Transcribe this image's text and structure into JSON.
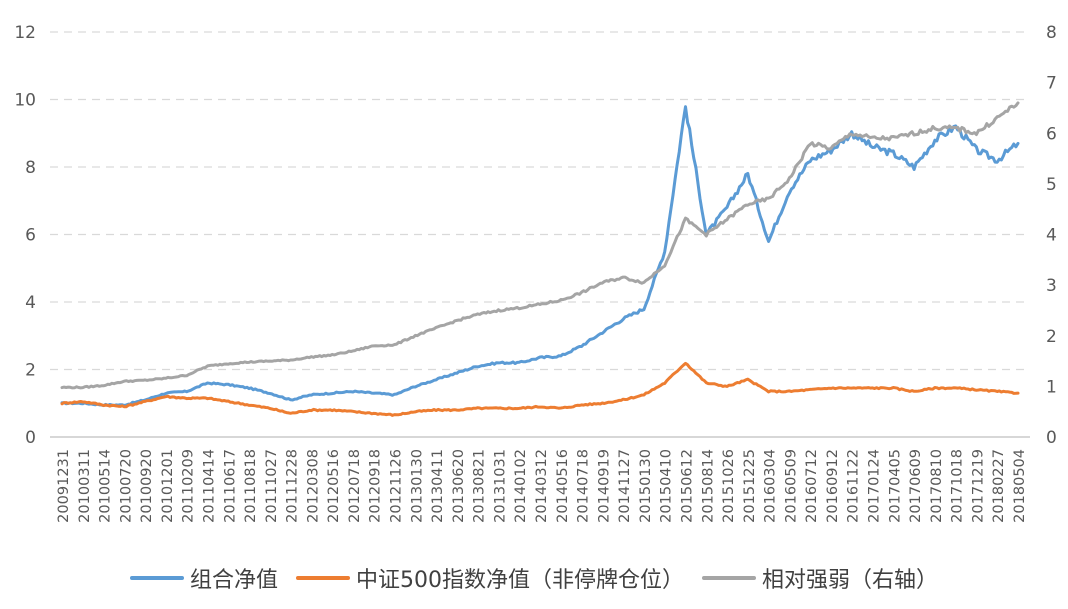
{
  "chart_data": {
    "type": "line",
    "title": "",
    "xlabel": "",
    "ylabel": "",
    "y_left": {
      "min": 0,
      "max": 12,
      "ticks": [
        "0",
        "2",
        "4",
        "6",
        "8",
        "10",
        "12"
      ]
    },
    "y_right": {
      "min": 0,
      "max": 8,
      "ticks": [
        "0",
        "1",
        "2",
        "3",
        "4",
        "5",
        "6",
        "7",
        "8"
      ]
    },
    "grid": "horizontal-dashed",
    "legend_position": "bottom",
    "x_tick_labels": [
      "20091231",
      "20100311",
      "20100514",
      "20100720",
      "20100920",
      "20101201",
      "20110209",
      "20110414",
      "20110617",
      "20110818",
      "20111027",
      "20111228",
      "20120308",
      "20120516",
      "20120718",
      "20120918",
      "20121126",
      "20130130",
      "20130411",
      "20130620",
      "20130821",
      "20131031",
      "20140102",
      "20140312",
      "20140516",
      "20140718",
      "20140919",
      "20141127",
      "20150130",
      "20150410",
      "20150612",
      "20150814",
      "20151026",
      "20151225",
      "20160304",
      "20160509",
      "20160712",
      "20160912",
      "20161122",
      "20170124",
      "20170405",
      "20170609",
      "20170810",
      "20171018",
      "20171219",
      "20180227",
      "20180504"
    ],
    "series": [
      {
        "name": "组合净值",
        "axis": "left",
        "color": "#5B9BD5",
        "values": [
          1.0,
          1.0,
          0.95,
          0.95,
          1.1,
          1.3,
          1.35,
          1.6,
          1.55,
          1.45,
          1.3,
          1.1,
          1.25,
          1.3,
          1.35,
          1.3,
          1.25,
          1.5,
          1.7,
          1.9,
          2.1,
          2.2,
          2.2,
          2.35,
          2.4,
          2.7,
          3.1,
          3.5,
          3.8,
          5.5,
          9.8,
          6.0,
          6.8,
          7.8,
          5.8,
          7.3,
          8.2,
          8.5,
          9.0,
          8.6,
          8.4,
          8.0,
          8.8,
          9.2,
          8.5,
          8.2,
          8.7
        ]
      },
      {
        "name": "中证500指数净值（非停牌仓位）",
        "axis": "left",
        "color": "#ED7D31",
        "values": [
          1.0,
          1.05,
          0.95,
          0.9,
          1.05,
          1.2,
          1.15,
          1.15,
          1.05,
          0.95,
          0.85,
          0.7,
          0.8,
          0.8,
          0.75,
          0.7,
          0.65,
          0.75,
          0.8,
          0.8,
          0.85,
          0.85,
          0.85,
          0.9,
          0.85,
          0.95,
          1.0,
          1.1,
          1.25,
          1.6,
          2.2,
          1.6,
          1.5,
          1.7,
          1.35,
          1.35,
          1.4,
          1.45,
          1.45,
          1.45,
          1.45,
          1.35,
          1.45,
          1.45,
          1.4,
          1.35,
          1.3
        ]
      },
      {
        "name": "相对强弱（右轴）",
        "axis": "right",
        "color": "#A5A5A5",
        "values": [
          0.98,
          0.98,
          1.02,
          1.1,
          1.12,
          1.16,
          1.22,
          1.4,
          1.45,
          1.48,
          1.5,
          1.52,
          1.58,
          1.62,
          1.7,
          1.8,
          1.82,
          2.0,
          2.15,
          2.3,
          2.42,
          2.5,
          2.55,
          2.62,
          2.7,
          2.85,
          3.05,
          3.15,
          3.05,
          3.4,
          4.3,
          4.0,
          4.3,
          4.6,
          4.7,
          5.1,
          5.8,
          5.7,
          6.0,
          5.9,
          5.9,
          6.0,
          6.1,
          6.1,
          6.0,
          6.3,
          6.6
        ]
      }
    ]
  }
}
